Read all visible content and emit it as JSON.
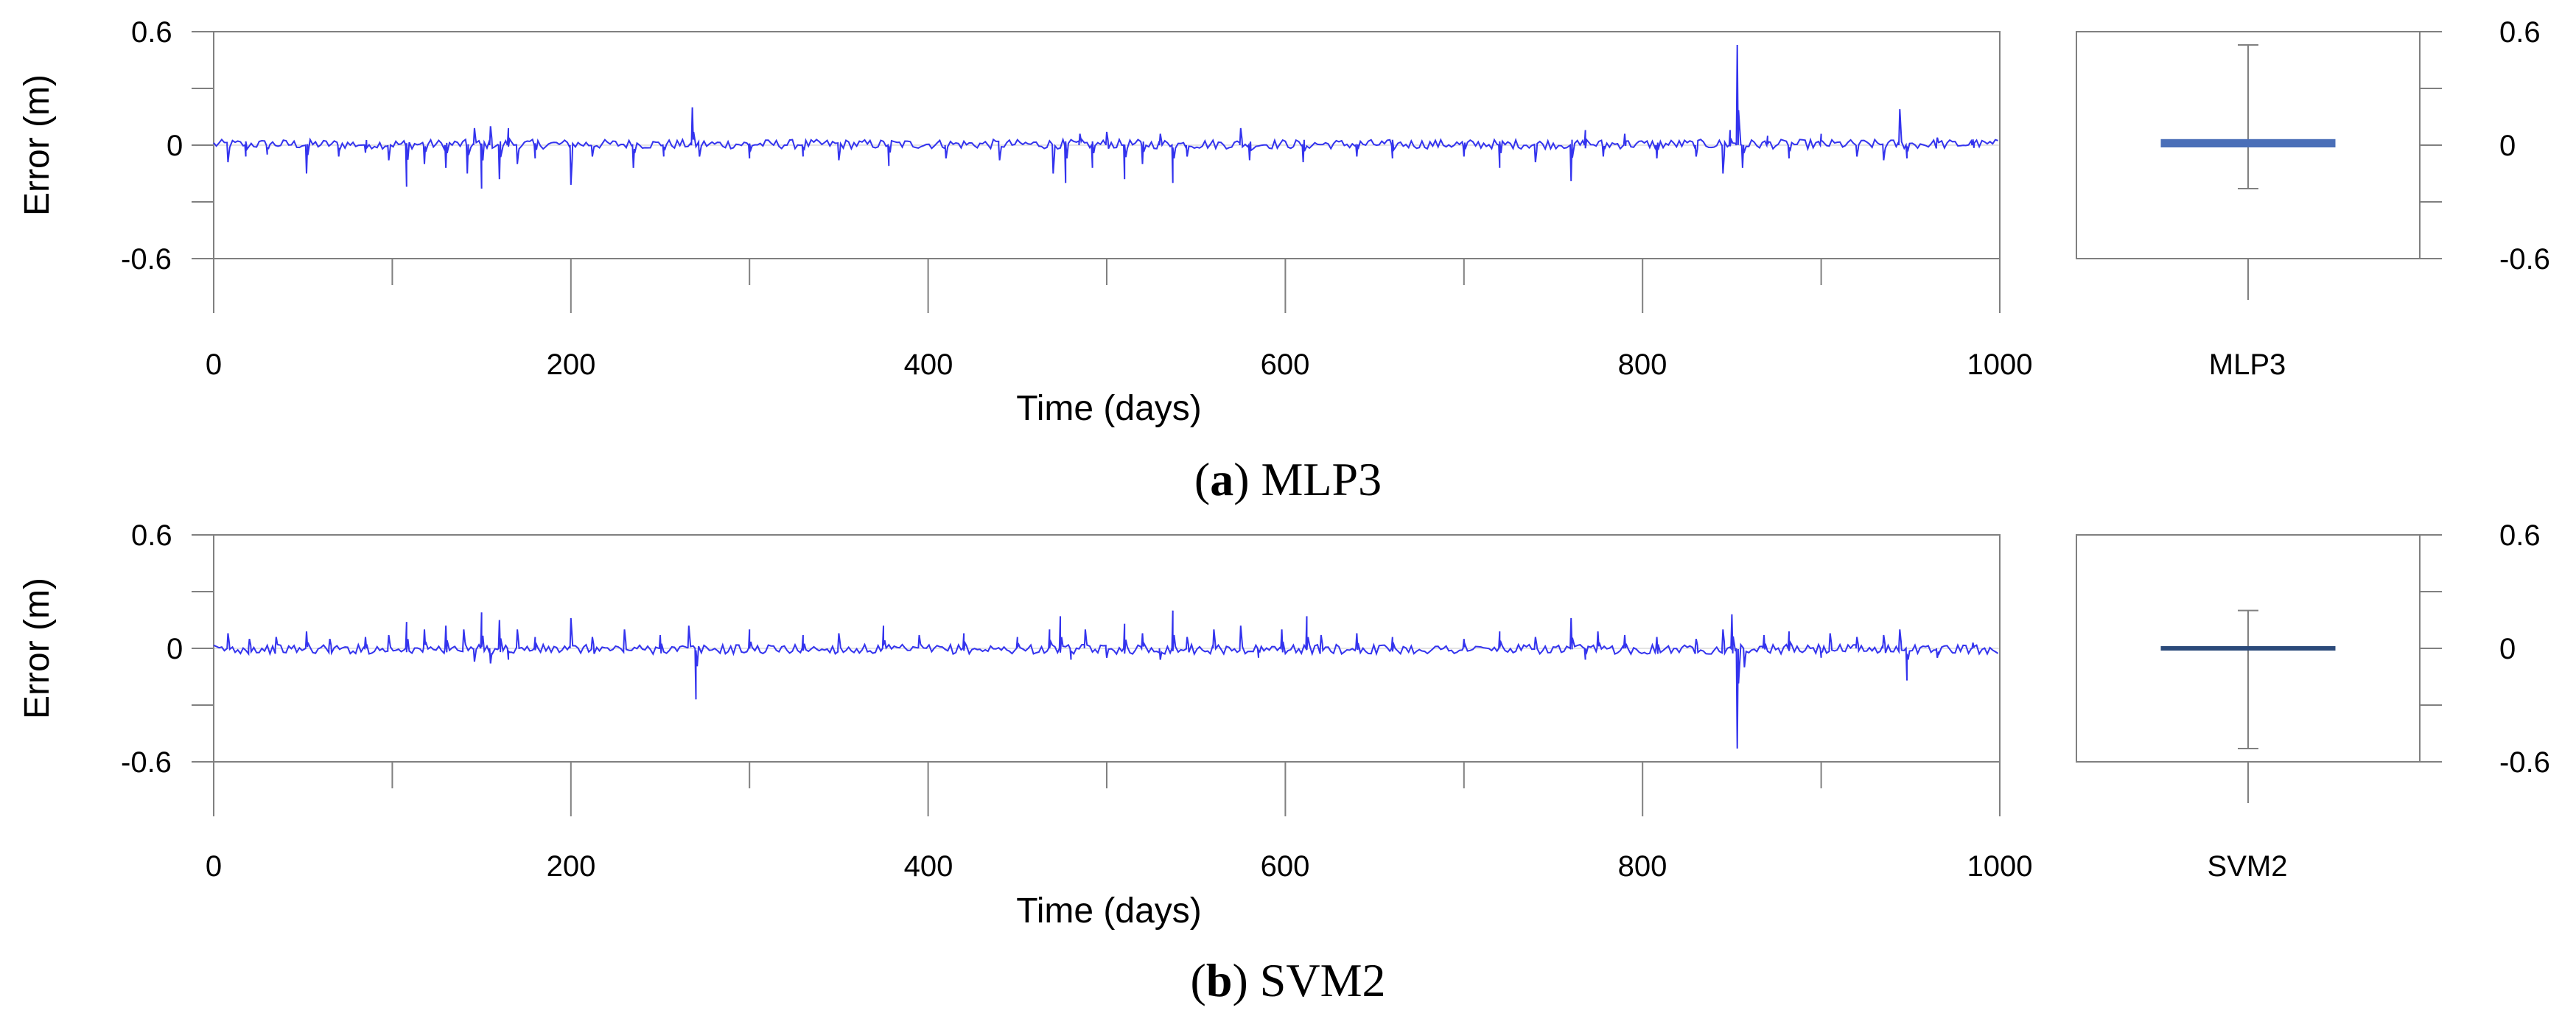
{
  "chart_data": [
    {
      "type": "line",
      "panel": "a",
      "caption_letter": "a",
      "caption_text": "MLP3",
      "xlabel": "Time (days)",
      "ylabel": "Error (m)",
      "xlim": [
        0,
        1000
      ],
      "ylim": [
        -0.6,
        0.6
      ],
      "xticks": [
        "0",
        "200",
        "400",
        "600",
        "800",
        "1000"
      ],
      "yticks": [
        "0.6",
        "0",
        "-0.6"
      ],
      "series": [
        {
          "name": "MLP3",
          "color": "#3333ee",
          "spikes": [
            {
              "x": 8,
              "y": -0.09
            },
            {
              "x": 18,
              "y": -0.06
            },
            {
              "x": 30,
              "y": -0.05
            },
            {
              "x": 52,
              "y": -0.15
            },
            {
              "x": 70,
              "y": -0.06
            },
            {
              "x": 85,
              "y": -0.04
            },
            {
              "x": 98,
              "y": -0.08
            },
            {
              "x": 108,
              "y": -0.22
            },
            {
              "x": 118,
              "y": -0.1
            },
            {
              "x": 130,
              "y": -0.12
            },
            {
              "x": 142,
              "y": -0.15
            },
            {
              "x": 146,
              "y": 0.09
            },
            {
              "x": 150,
              "y": -0.23
            },
            {
              "x": 155,
              "y": 0.1
            },
            {
              "x": 160,
              "y": -0.18
            },
            {
              "x": 165,
              "y": 0.09
            },
            {
              "x": 170,
              "y": -0.1
            },
            {
              "x": 180,
              "y": -0.07
            },
            {
              "x": 200,
              "y": -0.21
            },
            {
              "x": 212,
              "y": -0.06
            },
            {
              "x": 235,
              "y": -0.12
            },
            {
              "x": 252,
              "y": -0.06
            },
            {
              "x": 268,
              "y": 0.2
            },
            {
              "x": 272,
              "y": -0.06
            },
            {
              "x": 300,
              "y": -0.07
            },
            {
              "x": 330,
              "y": -0.06
            },
            {
              "x": 350,
              "y": -0.08
            },
            {
              "x": 378,
              "y": -0.11
            },
            {
              "x": 410,
              "y": -0.07
            },
            {
              "x": 440,
              "y": -0.08
            },
            {
              "x": 470,
              "y": -0.15
            },
            {
              "x": 477,
              "y": -0.2
            },
            {
              "x": 485,
              "y": 0.06
            },
            {
              "x": 492,
              "y": -0.12
            },
            {
              "x": 500,
              "y": 0.07
            },
            {
              "x": 510,
              "y": -0.18
            },
            {
              "x": 520,
              "y": -0.1
            },
            {
              "x": 530,
              "y": 0.06
            },
            {
              "x": 537,
              "y": -0.2
            },
            {
              "x": 545,
              "y": -0.06
            },
            {
              "x": 575,
              "y": 0.09
            },
            {
              "x": 580,
              "y": -0.08
            },
            {
              "x": 610,
              "y": -0.09
            },
            {
              "x": 640,
              "y": -0.06
            },
            {
              "x": 660,
              "y": -0.07
            },
            {
              "x": 700,
              "y": -0.06
            },
            {
              "x": 720,
              "y": -0.12
            },
            {
              "x": 740,
              "y": -0.09
            },
            {
              "x": 760,
              "y": -0.19
            },
            {
              "x": 768,
              "y": 0.08
            },
            {
              "x": 778,
              "y": -0.06
            },
            {
              "x": 790,
              "y": 0.06
            },
            {
              "x": 808,
              "y": -0.07
            },
            {
              "x": 830,
              "y": -0.06
            },
            {
              "x": 845,
              "y": -0.15
            },
            {
              "x": 849,
              "y": 0.08
            },
            {
              "x": 853,
              "y": 0.53
            },
            {
              "x": 856,
              "y": -0.12
            },
            {
              "x": 870,
              "y": 0.05
            },
            {
              "x": 882,
              "y": -0.07
            },
            {
              "x": 900,
              "y": 0.06
            },
            {
              "x": 920,
              "y": -0.06
            },
            {
              "x": 935,
              "y": -0.08
            },
            {
              "x": 944,
              "y": 0.19
            },
            {
              "x": 948,
              "y": -0.07
            },
            {
              "x": 965,
              "y": 0.04
            },
            {
              "x": 985,
              "y": 0.03
            }
          ]
        }
      ],
      "boxplot": {
        "label": "MLP3",
        "color": "#4a6fb8",
        "whisker_low": -0.23,
        "q1": -0.01,
        "median": 0.01,
        "q3": 0.03,
        "whisker_high": 0.53
      }
    },
    {
      "type": "line",
      "panel": "b",
      "caption_letter": "b",
      "caption_text": "SVM2",
      "xlabel": "Time (days)",
      "ylabel": "Error (m)",
      "xlim": [
        0,
        1000
      ],
      "ylim": [
        -0.6,
        0.6
      ],
      "xticks": [
        "0",
        "200",
        "400",
        "600",
        "800",
        "1000"
      ],
      "yticks": [
        "0.6",
        "0",
        "-0.6"
      ],
      "series": [
        {
          "name": "SVM2",
          "color": "#3333ee",
          "spikes": [
            {
              "x": 8,
              "y": 0.08
            },
            {
              "x": 20,
              "y": 0.05
            },
            {
              "x": 35,
              "y": 0.06
            },
            {
              "x": 52,
              "y": 0.09
            },
            {
              "x": 65,
              "y": 0.05
            },
            {
              "x": 85,
              "y": 0.06
            },
            {
              "x": 98,
              "y": 0.07
            },
            {
              "x": 108,
              "y": 0.14
            },
            {
              "x": 118,
              "y": 0.1
            },
            {
              "x": 130,
              "y": 0.12
            },
            {
              "x": 140,
              "y": 0.1
            },
            {
              "x": 146,
              "y": -0.07
            },
            {
              "x": 150,
              "y": 0.19
            },
            {
              "x": 155,
              "y": -0.08
            },
            {
              "x": 160,
              "y": 0.15
            },
            {
              "x": 165,
              "y": -0.06
            },
            {
              "x": 170,
              "y": 0.1
            },
            {
              "x": 180,
              "y": 0.06
            },
            {
              "x": 200,
              "y": 0.16
            },
            {
              "x": 212,
              "y": 0.06
            },
            {
              "x": 230,
              "y": 0.1
            },
            {
              "x": 250,
              "y": 0.07
            },
            {
              "x": 266,
              "y": 0.12
            },
            {
              "x": 270,
              "y": -0.27
            },
            {
              "x": 300,
              "y": 0.1
            },
            {
              "x": 330,
              "y": 0.07
            },
            {
              "x": 350,
              "y": 0.08
            },
            {
              "x": 375,
              "y": 0.12
            },
            {
              "x": 395,
              "y": 0.07
            },
            {
              "x": 420,
              "y": 0.08
            },
            {
              "x": 450,
              "y": 0.06
            },
            {
              "x": 468,
              "y": 0.1
            },
            {
              "x": 474,
              "y": 0.17
            },
            {
              "x": 480,
              "y": -0.06
            },
            {
              "x": 488,
              "y": 0.1
            },
            {
              "x": 500,
              "y": -0.05
            },
            {
              "x": 510,
              "y": 0.13
            },
            {
              "x": 520,
              "y": 0.08
            },
            {
              "x": 530,
              "y": -0.06
            },
            {
              "x": 537,
              "y": 0.2
            },
            {
              "x": 545,
              "y": 0.06
            },
            {
              "x": 560,
              "y": 0.1
            },
            {
              "x": 575,
              "y": 0.12
            },
            {
              "x": 585,
              "y": -0.05
            },
            {
              "x": 598,
              "y": 0.1
            },
            {
              "x": 612,
              "y": 0.17
            },
            {
              "x": 620,
              "y": 0.07
            },
            {
              "x": 640,
              "y": 0.08
            },
            {
              "x": 660,
              "y": 0.06
            },
            {
              "x": 700,
              "y": 0.05
            },
            {
              "x": 720,
              "y": 0.09
            },
            {
              "x": 740,
              "y": 0.06
            },
            {
              "x": 760,
              "y": 0.16
            },
            {
              "x": 768,
              "y": -0.06
            },
            {
              "x": 775,
              "y": 0.09
            },
            {
              "x": 790,
              "y": 0.07
            },
            {
              "x": 808,
              "y": 0.06
            },
            {
              "x": 830,
              "y": 0.05
            },
            {
              "x": 845,
              "y": 0.1
            },
            {
              "x": 850,
              "y": 0.18
            },
            {
              "x": 853,
              "y": -0.53
            },
            {
              "x": 857,
              "y": -0.1
            },
            {
              "x": 868,
              "y": 0.07
            },
            {
              "x": 882,
              "y": 0.09
            },
            {
              "x": 900,
              "y": -0.05
            },
            {
              "x": 905,
              "y": 0.08
            },
            {
              "x": 920,
              "y": 0.06
            },
            {
              "x": 935,
              "y": 0.07
            },
            {
              "x": 944,
              "y": 0.1
            },
            {
              "x": 948,
              "y": -0.17
            },
            {
              "x": 965,
              "y": -0.05
            },
            {
              "x": 985,
              "y": 0.03
            }
          ]
        }
      ],
      "boxplot": {
        "label": "SVM2",
        "color": "#2b4a7a",
        "whisker_low": -0.53,
        "q1": -0.005,
        "median": 0.0,
        "q3": 0.005,
        "whisker_high": 0.2
      }
    }
  ]
}
